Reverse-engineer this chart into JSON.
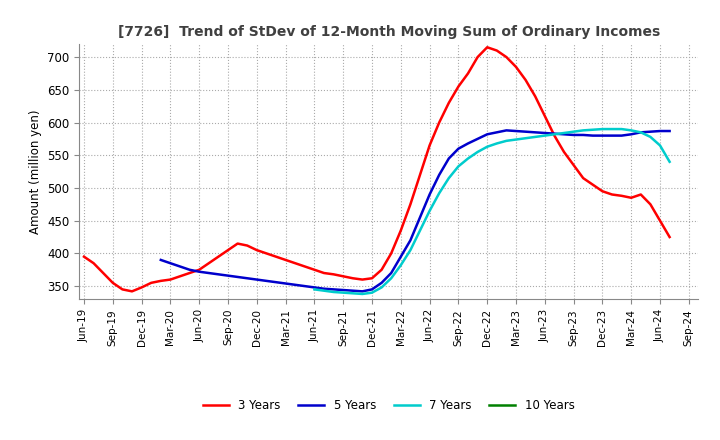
{
  "title": "[7726]  Trend of StDev of 12-Month Moving Sum of Ordinary Incomes",
  "ylabel": "Amount (million yen)",
  "ylim": [
    330,
    720
  ],
  "yticks": [
    350,
    400,
    450,
    500,
    550,
    600,
    650,
    700
  ],
  "background_color": "#ffffff",
  "series": {
    "3 Years": {
      "color": "#ff0000",
      "y": [
        395,
        385,
        370,
        355,
        345,
        342,
        348,
        355,
        358,
        360,
        365,
        370,
        375,
        385,
        395,
        405,
        415,
        412,
        405,
        400,
        395,
        390,
        385,
        380,
        375,
        370,
        368,
        365,
        362,
        360,
        362,
        375,
        400,
        435,
        475,
        520,
        565,
        600,
        630,
        655,
        675,
        700,
        715,
        710,
        700,
        685,
        665,
        640,
        610,
        580,
        555,
        535,
        515,
        505,
        495,
        490,
        488,
        485,
        490,
        475,
        450,
        425
      ]
    },
    "5 Years": {
      "color": "#0000cc",
      "y": [
        null,
        null,
        null,
        null,
        null,
        null,
        null,
        null,
        390,
        385,
        380,
        375,
        372,
        370,
        368,
        366,
        364,
        362,
        360,
        358,
        356,
        354,
        352,
        350,
        348,
        346,
        345,
        344,
        343,
        342,
        345,
        355,
        370,
        395,
        420,
        455,
        490,
        520,
        545,
        560,
        568,
        575,
        582,
        585,
        588,
        587,
        586,
        585,
        584,
        583,
        582,
        581,
        581,
        580,
        580,
        580,
        580,
        582,
        585,
        586,
        587,
        587
      ]
    },
    "7 Years": {
      "color": "#00cccc",
      "y": [
        null,
        null,
        null,
        null,
        null,
        null,
        null,
        null,
        null,
        null,
        null,
        null,
        null,
        null,
        null,
        null,
        null,
        null,
        null,
        null,
        null,
        null,
        null,
        null,
        345,
        343,
        341,
        340,
        339,
        338,
        340,
        348,
        362,
        382,
        405,
        435,
        465,
        492,
        515,
        533,
        545,
        555,
        563,
        568,
        572,
        574,
        576,
        578,
        580,
        582,
        584,
        586,
        588,
        589,
        590,
        590,
        590,
        588,
        585,
        578,
        565,
        540
      ]
    },
    "10 Years": {
      "color": "#008000",
      "y": [
        null,
        null,
        null,
        null,
        null,
        null,
        null,
        null,
        null,
        null,
        null,
        null,
        null,
        null,
        null,
        null,
        null,
        null,
        null,
        null,
        null,
        null,
        null,
        null,
        null,
        null,
        null,
        null,
        null,
        null,
        null,
        null,
        null,
        null,
        null,
        null,
        null,
        null,
        null,
        null,
        null,
        null,
        null,
        null,
        null,
        null,
        null,
        null,
        null,
        null,
        null,
        null,
        null,
        null,
        null,
        null,
        null,
        null,
        null,
        null,
        null,
        null
      ]
    }
  },
  "xtick_labels": [
    "Jun-19",
    "Sep-19",
    "Dec-19",
    "Mar-20",
    "Jun-20",
    "Sep-20",
    "Dec-20",
    "Mar-21",
    "Jun-21",
    "Sep-21",
    "Dec-21",
    "Mar-22",
    "Jun-22",
    "Sep-22",
    "Dec-22",
    "Mar-23",
    "Jun-23",
    "Sep-23",
    "Dec-23",
    "Mar-24",
    "Jun-24",
    "Sep-24"
  ],
  "xtick_positions": [
    0,
    3,
    6,
    9,
    12,
    15,
    18,
    21,
    24,
    27,
    30,
    33,
    36,
    39,
    42,
    45,
    48,
    51,
    54,
    57,
    60,
    63
  ],
  "n_points": 62
}
